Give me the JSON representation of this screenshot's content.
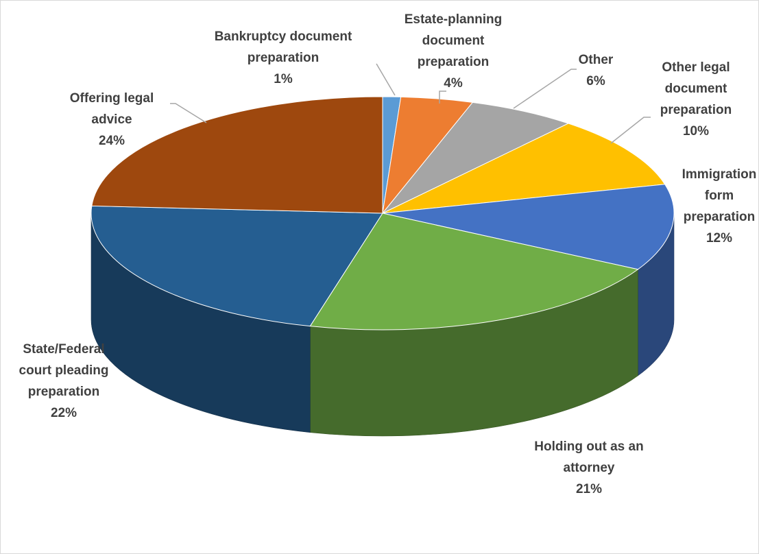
{
  "chart_data": {
    "type": "pie",
    "three_d": true,
    "title": "",
    "legend": "none",
    "slices": [
      {
        "name": "Bankruptcy document preparation",
        "value": 1,
        "label_lines": [
          "Bankruptcy document",
          "preparation",
          "1%"
        ],
        "color": "#5b9bd5"
      },
      {
        "name": "Estate-planning document preparation",
        "value": 4,
        "label_lines": [
          "Estate-planning",
          "document",
          "preparation",
          "4%"
        ],
        "color": "#ed7d31"
      },
      {
        "name": "Other",
        "value": 6,
        "label_lines": [
          "Other",
          "6%"
        ],
        "color": "#a5a5a5"
      },
      {
        "name": "Other legal document preparation",
        "value": 10,
        "label_lines": [
          "Other legal",
          "document",
          "preparation",
          "10%"
        ],
        "color": "#ffc000"
      },
      {
        "name": "Immigration form preparation",
        "value": 12,
        "label_lines": [
          "Immigration",
          "form",
          "preparation",
          "12%"
        ],
        "color": "#4472c4"
      },
      {
        "name": "Holding out as an attorney",
        "value": 21,
        "label_lines": [
          "Holding out as an",
          "attorney",
          "21%"
        ],
        "color": "#70ad47"
      },
      {
        "name": "State/Federal court pleading preparation",
        "value": 22,
        "label_lines": [
          "State/Federal",
          "court pleading",
          "preparation",
          "22%"
        ],
        "color": "#255e91"
      },
      {
        "name": "Offering legal advice",
        "value": 24,
        "label_lines": [
          "Offering legal",
          "advice",
          "24%"
        ],
        "color": "#9e480e"
      }
    ]
  }
}
